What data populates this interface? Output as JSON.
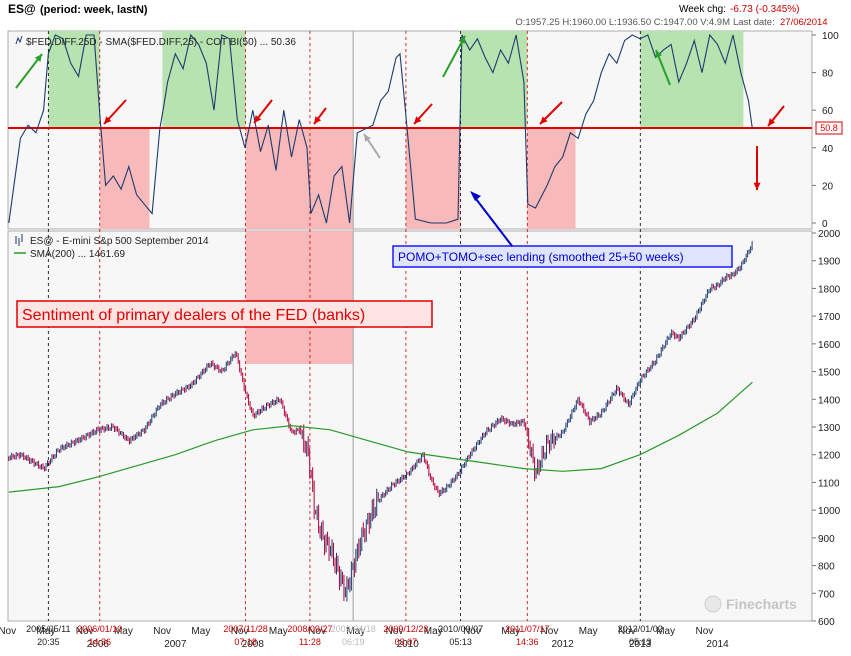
{
  "header": {
    "symbol": "ES@",
    "period": "(period: week, lastN)",
    "week_chg_label": "Week chg:",
    "week_chg_value": "-6.73 (-0.345%)",
    "ohlc": "O:1957.25  H:1960.00  L:1936.50  C:1947.00  V:4.9M",
    "last_date_label": "Last date:",
    "last_date_value": "27/06/2014"
  },
  "top_panel": {
    "legend": "$FED.DIFF.25D - SMA($FED.DIFF,25) - COT BI(50) ... 50.36",
    "threshold_badge": "50.8",
    "y_ticks": [
      "100",
      "80",
      "60",
      "40",
      "20",
      "0"
    ]
  },
  "bottom_panel": {
    "legend_price": "ES@ - E-mini S&p 500 September 2014",
    "legend_sma": "SMA(200) ... 1461.69",
    "y_ticks": [
      "2000",
      "1900",
      "1800",
      "1700",
      "1600",
      "1500",
      "1400",
      "1300",
      "1200",
      "1100",
      "1000",
      "900",
      "800",
      "700",
      "600"
    ]
  },
  "annotations": {
    "sentiment": "Sentiment of  primary dealers of the FED (banks)",
    "pomo": "POMO+TOMO+sec lending (smoothed 25+50 weeks)"
  },
  "x_axis": {
    "month_labels": [
      "Nov",
      "May",
      "Nov",
      "May",
      "Nov",
      "May",
      "Nov",
      "May",
      "Nov",
      "May",
      "Nov",
      "May",
      "Nov",
      "May",
      "Nov",
      "May",
      "Nov",
      "May",
      "Nov"
    ],
    "year_labels": [
      "2006",
      "2007",
      "2008",
      "2010",
      "2012",
      "2013",
      "2014"
    ],
    "event_dates": [
      {
        "date": "2005/05/11",
        "time": "20:35",
        "color": "#000000"
      },
      {
        "date": "2006/01/10",
        "time": "14:36",
        "color": "#cc0000"
      },
      {
        "date": "2007/11/28",
        "time": "07:18",
        "color": "#cc0000"
      },
      {
        "date": "2008/09/27",
        "time": "11:28",
        "color": "#cc0000"
      },
      {
        "date": "2009/04/18",
        "time": "06:19",
        "color": "#bbbbbb"
      },
      {
        "date": "2009/12/23",
        "time": "03:07",
        "color": "#cc0000"
      },
      {
        "date": "2010/09/07",
        "time": "05:13",
        "color": "#000000"
      },
      {
        "date": "2011/07/17",
        "time": "14:36",
        "color": "#cc0000"
      },
      {
        "date": "2013/01/02",
        "time": "05:13",
        "color": "#000000"
      }
    ]
  },
  "watermark": "Finecharts",
  "chart_data": [
    {
      "type": "line",
      "title": "$FED.DIFF.25D - SMA($FED.DIFF,25) - COT BI(50)",
      "ylim": [
        0,
        100
      ],
      "threshold": 50.8,
      "last_value": 50.36,
      "green_zones": [
        [
          "2005/05/11",
          "2006/01/10"
        ],
        [
          "2006/11",
          "2007/11/28"
        ],
        [
          "2010/09/07",
          "2011/07/17"
        ],
        [
          "2013/01/02",
          "2014/05"
        ]
      ],
      "red_zones": [
        [
          "2006/01/10",
          "2006/09"
        ],
        [
          "2007/11/28",
          "2009/04/18"
        ],
        [
          "2009/12/23",
          "2010/09/07"
        ],
        [
          "2011/07/17",
          "2012/03"
        ]
      ],
      "series": [
        {
          "x": [
            2004.85,
            2005.0,
            2005.1,
            2005.2,
            2005.3,
            2005.36,
            2005.45,
            2005.55,
            2005.65,
            2005.75,
            2005.85,
            2005.95,
            2006.03,
            2006.1,
            2006.2,
            2006.3,
            2006.4,
            2006.5,
            2006.6,
            2006.7,
            2006.8,
            2006.85,
            2006.9,
            2007.0,
            2007.1,
            2007.2,
            2007.3,
            2007.4,
            2007.5,
            2007.6,
            2007.7,
            2007.8,
            2007.9,
            2008.0,
            2008.1,
            2008.2,
            2008.3,
            2008.4,
            2008.5,
            2008.6,
            2008.7,
            2008.75,
            2008.85,
            2008.95,
            2009.05,
            2009.15,
            2009.25,
            2009.35,
            2009.45,
            2009.55,
            2009.65,
            2009.75,
            2009.85,
            2009.9,
            2009.97,
            2010.1,
            2010.3,
            2010.5,
            2010.65,
            2010.7,
            2010.8,
            2010.9,
            2011.0,
            2011.1,
            2011.2,
            2011.3,
            2011.4,
            2011.5,
            2011.55,
            2011.65,
            2011.8,
            2011.9,
            2012.0,
            2012.1,
            2012.2,
            2012.3,
            2012.4,
            2012.5,
            2012.6,
            2012.7,
            2012.8,
            2012.9,
            2013.0,
            2013.1,
            2013.2,
            2013.3,
            2013.4,
            2013.5,
            2013.6,
            2013.7,
            2013.8,
            2013.9,
            2014.0,
            2014.1,
            2014.2,
            2014.3,
            2014.4,
            2014.45
          ],
          "values": [
            0,
            45,
            52,
            48,
            60,
            90,
            100,
            98,
            85,
            78,
            100,
            100,
            55,
            20,
            25,
            18,
            30,
            15,
            10,
            5,
            50,
            62,
            75,
            90,
            82,
            100,
            95,
            85,
            60,
            100,
            98,
            55,
            40,
            60,
            38,
            52,
            28,
            60,
            35,
            55,
            40,
            5,
            15,
            0,
            25,
            30,
            0,
            48,
            50,
            52,
            65,
            70,
            88,
            90,
            60,
            2,
            0,
            0,
            2,
            100,
            92,
            98,
            88,
            80,
            92,
            85,
            100,
            75,
            10,
            8,
            20,
            30,
            35,
            48,
            45,
            58,
            65,
            80,
            90,
            85,
            97,
            100,
            98,
            100,
            88,
            92,
            95,
            75,
            85,
            97,
            80,
            100,
            95,
            85,
            100,
            80,
            65,
            50
          ]
        }
      ]
    },
    {
      "type": "line",
      "title": "ES@ - E-mini S&p 500 September 2014",
      "ylim": [
        600,
        2000
      ],
      "series": [
        {
          "name": "ES@ - E-mini S&p 500 September 2014",
          "x": [
            2004.85,
            2005.0,
            2005.3,
            2005.5,
            2005.8,
            2006.0,
            2006.2,
            2006.4,
            2006.6,
            2006.8,
            2007.0,
            2007.2,
            2007.45,
            2007.6,
            2007.78,
            2007.9,
            2008.0,
            2008.2,
            2008.35,
            2008.5,
            2008.6,
            2008.72,
            2008.8,
            2008.9,
            2009.0,
            2009.1,
            2009.2,
            2009.4,
            2009.6,
            2009.8,
            2010.0,
            2010.2,
            2010.3,
            2010.4,
            2010.5,
            2010.65,
            2010.8,
            2011.0,
            2011.2,
            2011.35,
            2011.5,
            2011.6,
            2011.65,
            2011.8,
            2012.0,
            2012.2,
            2012.35,
            2012.5,
            2012.7,
            2012.85,
            2013.0,
            2013.2,
            2013.4,
            2013.5,
            2013.7,
            2013.9,
            2014.0,
            2014.1,
            2014.2,
            2014.3,
            2014.45
          ],
          "values": [
            1190,
            1200,
            1150,
            1220,
            1260,
            1290,
            1300,
            1250,
            1290,
            1380,
            1420,
            1450,
            1530,
            1500,
            1570,
            1430,
            1340,
            1380,
            1400,
            1280,
            1290,
            1200,
            1000,
            900,
            860,
            780,
            700,
            900,
            1030,
            1090,
            1130,
            1200,
            1110,
            1060,
            1080,
            1130,
            1200,
            1280,
            1330,
            1310,
            1320,
            1200,
            1130,
            1240,
            1280,
            1400,
            1320,
            1350,
            1440,
            1380,
            1470,
            1540,
            1640,
            1620,
            1690,
            1800,
            1810,
            1840,
            1850,
            1880,
            1960
          ]
        },
        {
          "name": "SMA(200) ... 1461.69",
          "x": [
            2004.85,
            2005.5,
            2006.0,
            2006.5,
            2007.0,
            2007.5,
            2008.0,
            2008.5,
            2009.0,
            2009.5,
            2010.0,
            2010.5,
            2011.0,
            2011.5,
            2012.0,
            2012.5,
            2013.0,
            2013.5,
            2014.0,
            2014.45
          ],
          "values": [
            1065,
            1085,
            1120,
            1160,
            1200,
            1250,
            1290,
            1305,
            1290,
            1250,
            1210,
            1190,
            1170,
            1150,
            1140,
            1150,
            1200,
            1270,
            1350,
            1461.69
          ]
        }
      ]
    }
  ]
}
